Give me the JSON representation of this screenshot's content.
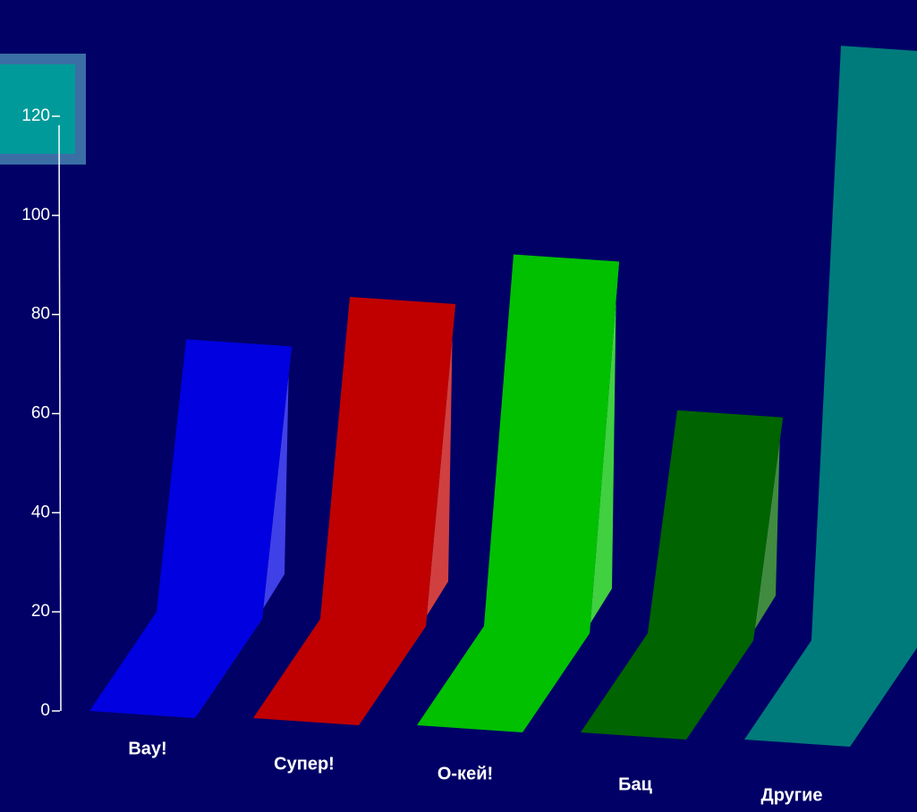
{
  "chart_data": {
    "type": "bar3d",
    "categories": [
      "Вау!",
      "Супер!",
      "О-кей!",
      "Бац",
      "Другие"
    ],
    "values": [
      75,
      85,
      95,
      65,
      140
    ],
    "colors": [
      "#0000e0",
      "#c00000",
      "#00c000",
      "#006400",
      "#007b7b"
    ],
    "ylim": [
      0,
      120
    ],
    "yticks": [
      0,
      20,
      40,
      60,
      80,
      100,
      120
    ]
  }
}
